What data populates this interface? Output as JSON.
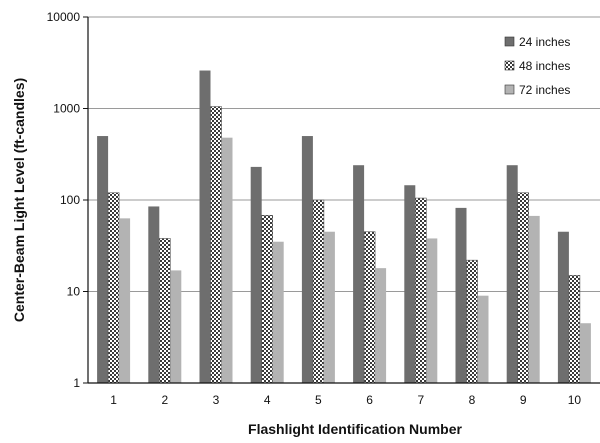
{
  "chart_data": {
    "type": "bar",
    "title": "",
    "xlabel": "Flashlight Identification Number",
    "ylabel": "Center-Beam Light Level (ft-candles)",
    "yscale": "log",
    "ylim": [
      1,
      10000
    ],
    "yticks": [
      "1",
      "10",
      "100",
      "1000",
      "10000"
    ],
    "grid": "horizontal",
    "legend_position": "top-right",
    "categories": [
      "1",
      "2",
      "3",
      "4",
      "5",
      "6",
      "7",
      "8",
      "9",
      "10"
    ],
    "series": [
      {
        "name": "24 inches",
        "color": "#6e6e6e",
        "pattern": "solid",
        "values": [
          500,
          85,
          2600,
          230,
          500,
          240,
          145,
          82,
          240,
          45
        ]
      },
      {
        "name": "48 inches",
        "color": "#d8d8d8",
        "pattern": "checker",
        "values": [
          120,
          38,
          1050,
          68,
          100,
          45,
          105,
          22,
          120,
          15
        ]
      },
      {
        "name": "72 inches",
        "color": "#b3b3b3",
        "pattern": "solid",
        "values": [
          63,
          17,
          480,
          35,
          45,
          18,
          38,
          9,
          67,
          4.5
        ]
      }
    ]
  }
}
